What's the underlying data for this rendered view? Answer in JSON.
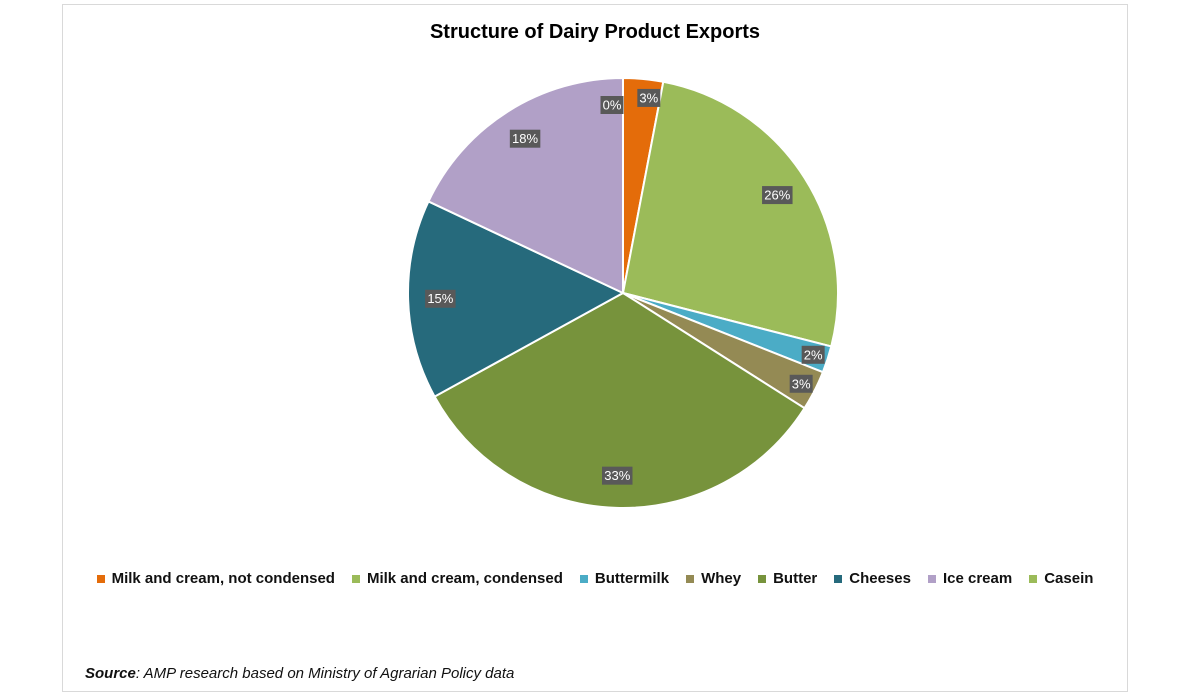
{
  "chart_data": {
    "type": "pie",
    "title": "Structure of Dairy Product Exports",
    "slices": [
      {
        "name": "Milk and cream, not condensed",
        "value": 3,
        "label": "3%",
        "color": "#E46C0A"
      },
      {
        "name": "Milk and cream, condensed",
        "value": 26,
        "label": "26%",
        "color": "#9BBB59"
      },
      {
        "name": "Buttermilk",
        "value": 2,
        "label": "2%",
        "color": "#4BACC6"
      },
      {
        "name": "Whey",
        "value": 3,
        "label": "3%",
        "color": "#948A54"
      },
      {
        "name": "Butter",
        "value": 33,
        "label": "33%",
        "color": "#77933C"
      },
      {
        "name": "Cheeses",
        "value": 15,
        "label": "15%",
        "color": "#266A7C"
      },
      {
        "name": "Ice cream",
        "value": 18,
        "label": "18%",
        "color": "#B1A0C7"
      },
      {
        "name": "Casein",
        "value": 0,
        "label": "0%",
        "color": "#9BBB59"
      }
    ],
    "legend_position": "bottom"
  },
  "source": {
    "prefix": "Source",
    "text": ": AMP research based on Ministry of Agrarian Policy data"
  }
}
